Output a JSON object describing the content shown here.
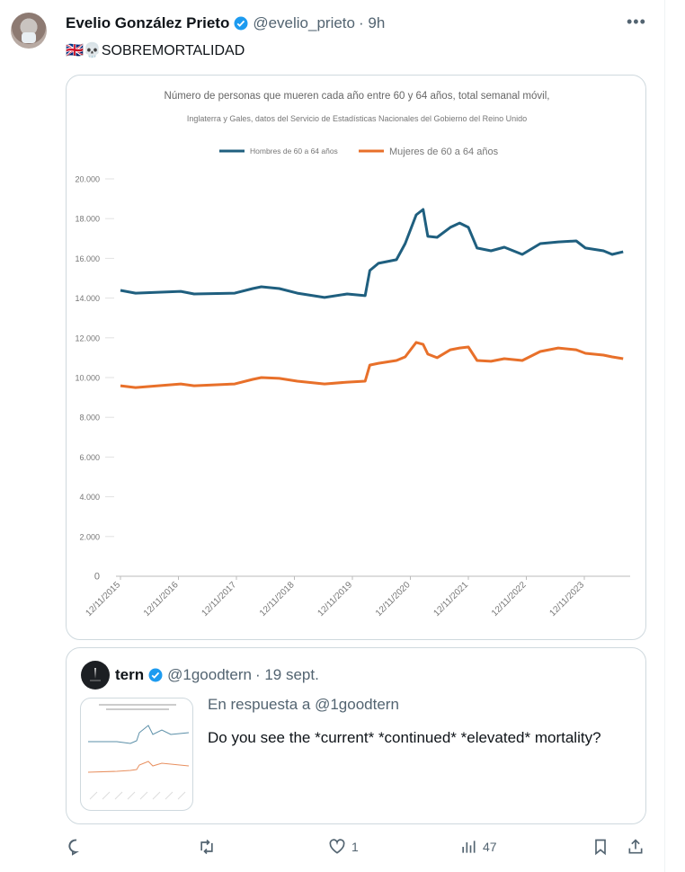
{
  "tweet": {
    "author_name": "Evelio González Prieto",
    "handle": "@evelio_prieto",
    "time": "· 9h",
    "text": "🇬🇧💀SOBREMORTALIDAD",
    "more_icon": "more-icon"
  },
  "chart_data": {
    "type": "line",
    "title": "Número de personas que mueren cada año entre 60 y 64 años, total semanal móvil,",
    "subtitle": "Inglaterra y Gales, datos del Servicio de Estadísticas Nacionales del Gobierno del Reino Unido",
    "ylim": [
      0,
      20000
    ],
    "yticks": [
      "0",
      "2.000",
      "4.000",
      "6.000",
      "8.000",
      "10.000",
      "12.000",
      "14.000",
      "16.000",
      "18.000",
      "20.000"
    ],
    "xlim": [
      2015.86,
      2024.6
    ],
    "xticks": [
      {
        "label": "12/11/2015",
        "x": 2015.86
      },
      {
        "label": "12/11/2016",
        "x": 2016.86
      },
      {
        "label": "12/11/2017",
        "x": 2017.86
      },
      {
        "label": "12/11/2018",
        "x": 2018.86
      },
      {
        "label": "12/11/2019",
        "x": 2019.86
      },
      {
        "label": "12/11/2020",
        "x": 2020.86
      },
      {
        "label": "12/11/2021",
        "x": 2021.86
      },
      {
        "label": "12/11/2022",
        "x": 2022.86
      },
      {
        "label": "12/11/2023",
        "x": 2023.86
      }
    ],
    "x": [
      2015.86,
      2016.12,
      2016.9,
      2017.13,
      2017.83,
      2018.14,
      2018.29,
      2018.6,
      2018.91,
      2019.38,
      2019.77,
      2020.08,
      2020.16,
      2020.31,
      2020.62,
      2020.77,
      2020.96,
      2021.08,
      2021.16,
      2021.32,
      2021.55,
      2021.71,
      2021.86,
      2022.01,
      2022.25,
      2022.48,
      2022.79,
      2023.1,
      2023.41,
      2023.72,
      2023.88,
      2024.19,
      2024.34,
      2024.53
    ],
    "series": [
      {
        "name": "Hombres de 60 a 64 años",
        "color": "#1f5f7f",
        "values": [
          14390,
          14250,
          14340,
          14210,
          14250,
          14480,
          14570,
          14480,
          14250,
          14030,
          14210,
          14120,
          15390,
          15750,
          15930,
          16740,
          18190,
          18460,
          17110,
          17060,
          17560,
          17780,
          17560,
          16520,
          16380,
          16560,
          16200,
          16740,
          16830,
          16880,
          16520,
          16380,
          16200,
          16330
        ]
      },
      {
        "name": "Mujeres de 60 a 64 años",
        "color": "#e8702a",
        "values": [
          9590,
          9500,
          9680,
          9590,
          9680,
          9910,
          10000,
          9960,
          9820,
          9680,
          9770,
          9820,
          10630,
          10720,
          10860,
          11040,
          11770,
          11670,
          11180,
          11000,
          11400,
          11490,
          11540,
          10860,
          10820,
          10950,
          10860,
          11310,
          11490,
          11400,
          11220,
          11130,
          11040,
          10950
        ]
      }
    ]
  },
  "quote": {
    "author_name": "tern",
    "handle": "@1goodtern",
    "time": "· 19 sept.",
    "reply_to": "En respuesta a @1goodtern",
    "text": "Do you see the *current* *continued* *elevated* mortality?"
  },
  "actions": {
    "replies": "",
    "retweets": "",
    "likes": "1",
    "views": "47"
  }
}
